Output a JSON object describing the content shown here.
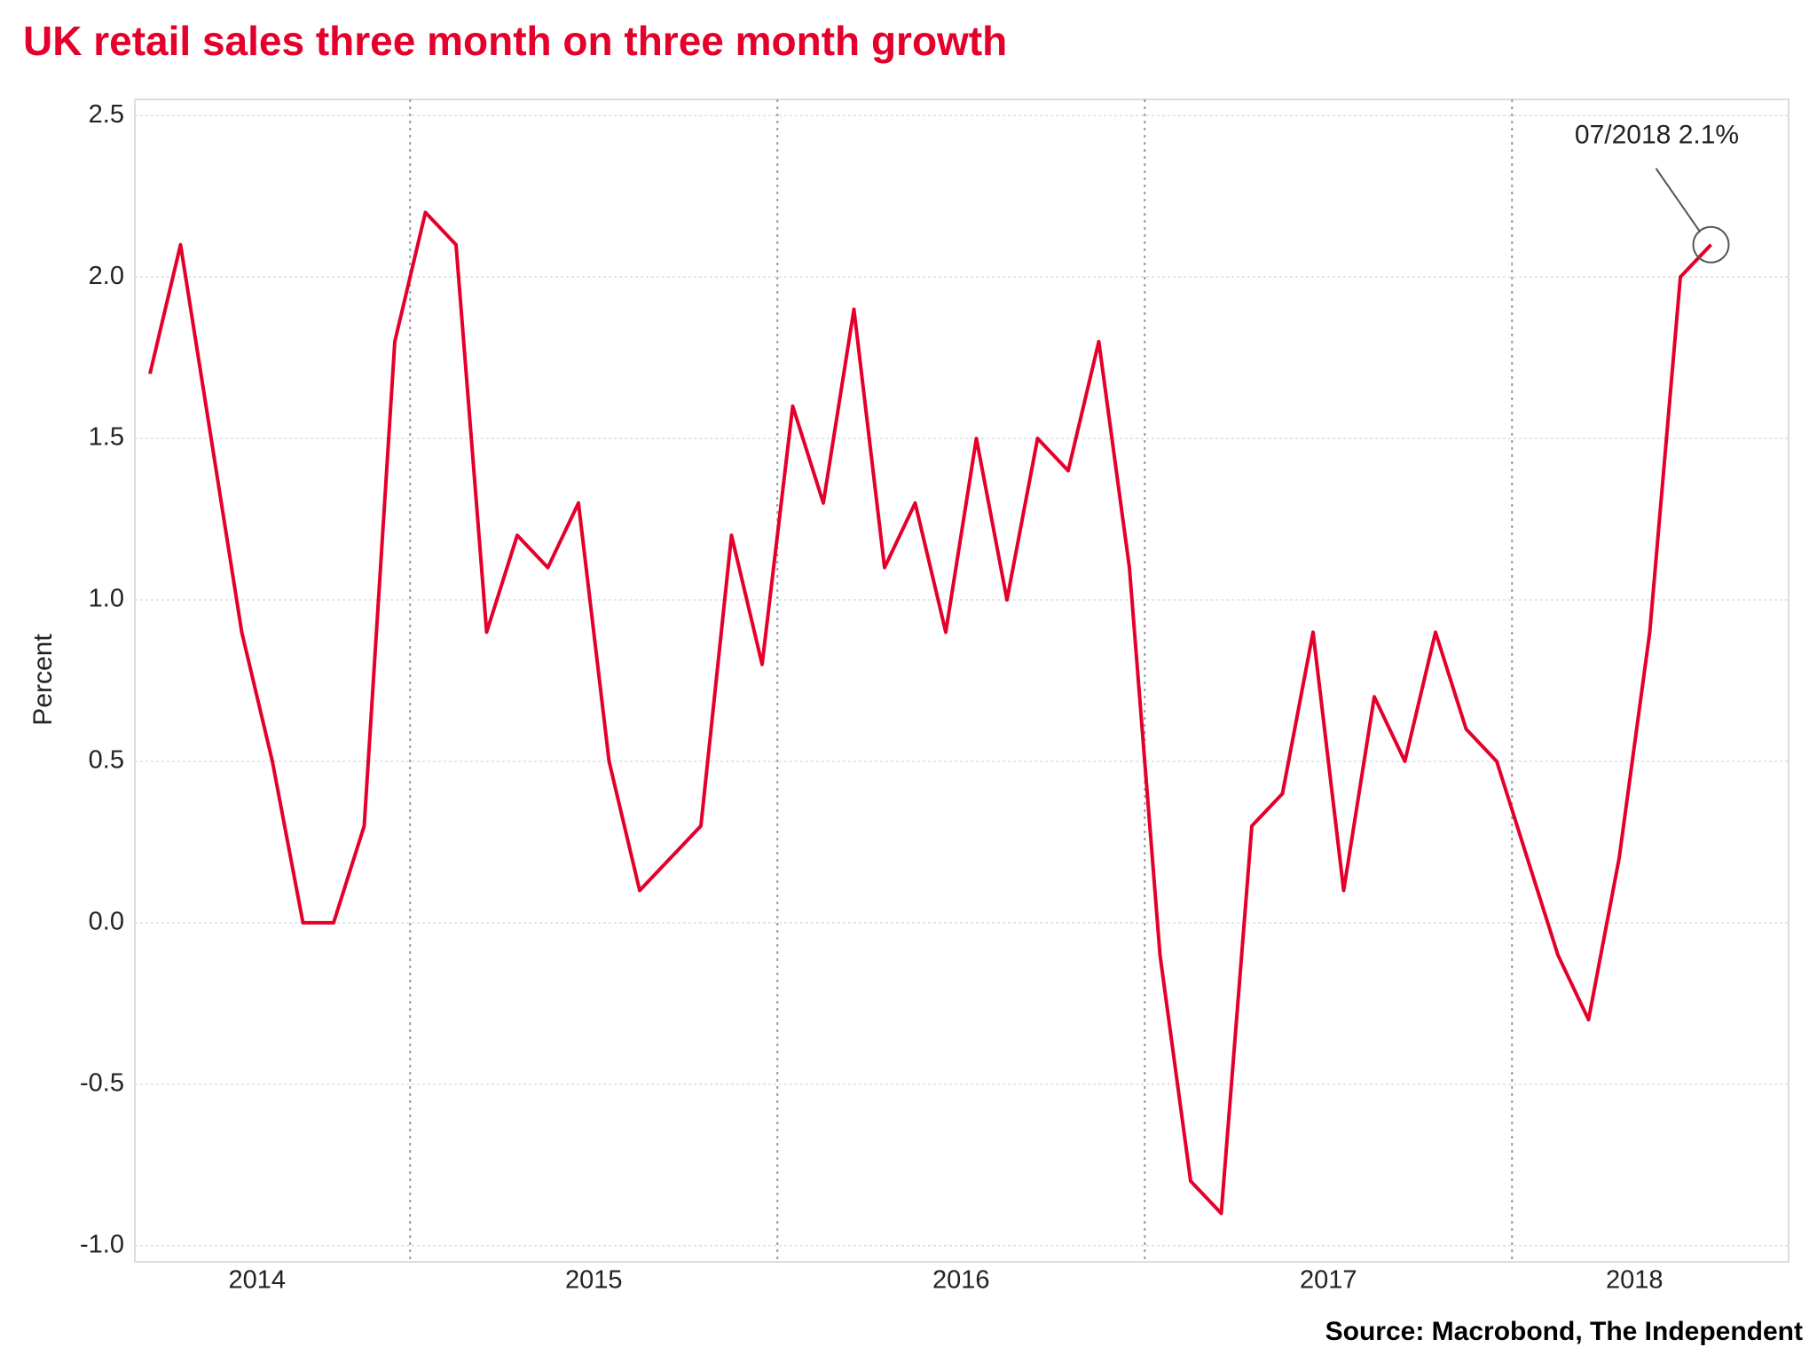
{
  "chart_data": {
    "type": "line",
    "title": "UK retail sales three month on three month growth",
    "y_label": "Percent",
    "source": "Source: Macrobond, The Independent",
    "annotation": "07/2018 2.1%",
    "categories": [
      null,
      null,
      null,
      null,
      "2014",
      null,
      null,
      null,
      null,
      null,
      null,
      null,
      null,
      null,
      null,
      "2015",
      null,
      null,
      null,
      null,
      null,
      null,
      null,
      null,
      null,
      null,
      null,
      "2016",
      null,
      null,
      null,
      null,
      null,
      null,
      null,
      null,
      null,
      null,
      null,
      "2017",
      null,
      null,
      null,
      null,
      null,
      null,
      null,
      null,
      null,
      "2018",
      null,
      null
    ],
    "series": [
      {
        "name": "UK retail sales",
        "color": "#e4002b",
        "values": [
          1.7,
          2.1,
          1.5,
          0.9,
          0.5,
          0.0,
          0.0,
          0.3,
          1.8,
          2.2,
          2.1,
          0.9,
          1.2,
          1.1,
          1.3,
          0.5,
          0.1,
          0.2,
          0.3,
          1.2,
          0.8,
          1.6,
          1.3,
          1.9,
          1.1,
          1.3,
          0.9,
          1.5,
          1.0,
          1.5,
          1.4,
          1.8,
          1.1,
          -0.1,
          -0.8,
          -0.9,
          0.3,
          0.4,
          0.9,
          0.1,
          0.7,
          0.5,
          0.9,
          0.6,
          0.5,
          0.2,
          -0.1,
          -0.3,
          0.2,
          0.9,
          2.0,
          2.1
        ]
      }
    ],
    "ylim": [
      -1.05,
      2.55
    ],
    "yticks": [
      {
        "value": -1.0,
        "label": "-1.0"
      },
      -0.5,
      {
        "value": 0.0,
        "label": "0.0"
      },
      0.5,
      {
        "value": 1.0,
        "label": "1.0"
      },
      1.5,
      {
        "value": 2.0,
        "label": "2.0"
      },
      2.5
    ],
    "grid": true
  }
}
